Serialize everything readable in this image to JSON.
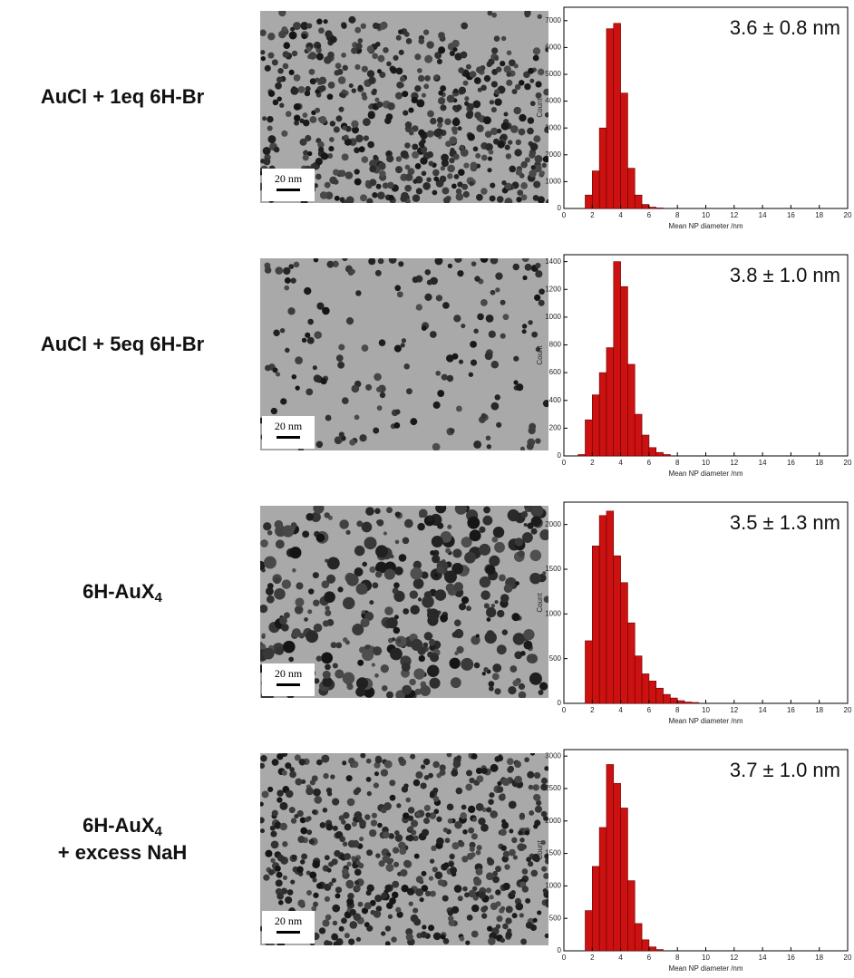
{
  "rows": [
    {
      "label": [
        {
          "text": "AuCl + 1eq 6H-Br"
        }
      ],
      "scale_bar": "20 nm"
    },
    {
      "label": [
        {
          "text": "AuCl + 5eq 6H-Br"
        }
      ],
      "scale_bar": "20 nm"
    },
    {
      "label": [
        {
          "text": "6H-AuX",
          "sub": "4"
        }
      ],
      "scale_bar": "20 nm"
    },
    {
      "label": [
        {
          "text": "6H-AuX",
          "sub": "4"
        },
        {
          "text": "+ excess NaH"
        }
      ],
      "scale_bar": "20 nm"
    }
  ],
  "chart_data": [
    {
      "type": "histogram",
      "annotation": "3.6 ± 0.8 nm",
      "x_label": "Mean NP diameter /nm",
      "y_label": "Count",
      "color": "#cc1111",
      "bins": [
        1.5,
        2,
        2.5,
        3,
        3.5,
        4,
        4.5,
        5,
        5.5,
        6,
        6.5,
        7
      ],
      "values": [
        500,
        1400,
        3000,
        6700,
        6900,
        4300,
        1500,
        500,
        150,
        50,
        20
      ],
      "xlim": [
        0,
        20
      ],
      "xticks": [
        0,
        2,
        4,
        6,
        8,
        10,
        12,
        14,
        16,
        18,
        20
      ],
      "ylim": [
        0,
        7500
      ],
      "yticks": [
        0,
        1000,
        2000,
        3000,
        4000,
        5000,
        6000,
        7000
      ]
    },
    {
      "type": "histogram",
      "annotation": "3.8 ± 1.0 nm",
      "x_label": "Mean NP diameter /nm",
      "y_label": "Count",
      "color": "#cc1111",
      "bins": [
        1,
        1.5,
        2,
        2.5,
        3,
        3.5,
        4,
        4.5,
        5,
        5.5,
        6,
        6.5,
        7,
        7.5
      ],
      "values": [
        10,
        260,
        440,
        600,
        780,
        1400,
        1220,
        660,
        300,
        150,
        60,
        25,
        10
      ],
      "xlim": [
        0,
        20
      ],
      "xticks": [
        0,
        2,
        4,
        6,
        8,
        10,
        12,
        14,
        16,
        18,
        20
      ],
      "ylim": [
        0,
        1450
      ],
      "yticks": [
        0,
        200,
        400,
        600,
        800,
        1000,
        1200,
        1400
      ]
    },
    {
      "type": "histogram",
      "annotation": "3.5 ± 1.3 nm",
      "x_label": "Mean NP diameter /nm",
      "y_label": "Count",
      "color": "#cc1111",
      "bins": [
        1.5,
        2,
        2.5,
        3,
        3.5,
        4,
        4.5,
        5,
        5.5,
        6,
        6.5,
        7,
        7.5,
        8,
        8.5,
        9,
        9.5
      ],
      "values": [
        700,
        1760,
        2100,
        2150,
        1650,
        1350,
        900,
        530,
        330,
        250,
        170,
        100,
        60,
        30,
        15,
        10
      ],
      "xlim": [
        0,
        20
      ],
      "xticks": [
        0,
        2,
        4,
        6,
        8,
        10,
        12,
        14,
        16,
        18,
        20
      ],
      "ylim": [
        0,
        2250
      ],
      "yticks": [
        0,
        500,
        1000,
        1500,
        2000
      ]
    },
    {
      "type": "histogram",
      "annotation": "3.7 ± 1.0 nm",
      "x_label": "Mean NP diameter /nm",
      "y_label": "Count",
      "color": "#cc1111",
      "bins": [
        1.5,
        2,
        2.5,
        3,
        3.5,
        4,
        4.5,
        5,
        5.5,
        6,
        6.5,
        7
      ],
      "values": [
        620,
        1300,
        1900,
        2870,
        2580,
        2200,
        1080,
        420,
        170,
        60,
        20
      ],
      "xlim": [
        0,
        20
      ],
      "xticks": [
        0,
        2,
        4,
        6,
        8,
        10,
        12,
        14,
        16,
        18,
        20
      ],
      "ylim": [
        0,
        3100
      ],
      "yticks": [
        0,
        500,
        1000,
        1500,
        2000,
        2500,
        3000
      ]
    }
  ]
}
